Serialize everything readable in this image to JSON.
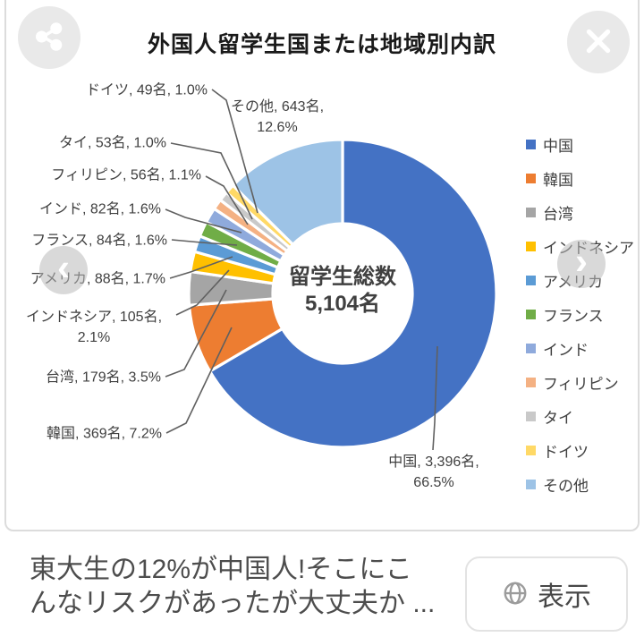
{
  "viewer": {
    "close_icon": "close-x",
    "share_icon": "share-nodes",
    "prev_icon": "chevron-left",
    "next_icon": "chevron-right",
    "prev_glyph": "‹",
    "next_glyph": "›"
  },
  "chart_data": {
    "type": "pie",
    "subtype": "doughnut",
    "title": "外国人留学生国または地域別内訳",
    "center_label": {
      "line1": "留学生総数",
      "line2": "5,104名"
    },
    "total": 5104,
    "unit": "名",
    "legend_position": "right",
    "start_angle_deg": 0,
    "direction": "clockwise",
    "series": [
      {
        "name": "中国",
        "count": 3396,
        "pct": 66.5,
        "color": "#4472C4",
        "label_lines": [
          "中国, 3,396名,",
          "66.5%"
        ]
      },
      {
        "name": "韓国",
        "count": 369,
        "pct": 7.2,
        "color": "#ED7D31",
        "label_lines": [
          "韓国, 369名, 7.2%"
        ]
      },
      {
        "name": "台湾",
        "count": 179,
        "pct": 3.5,
        "color": "#A5A5A5",
        "label_lines": [
          "台湾, 179名, 3.5%"
        ]
      },
      {
        "name": "インドネシア",
        "count": 105,
        "pct": 2.1,
        "color": "#FFC000",
        "label_lines": [
          "インドネシア, 105名,",
          "2.1%"
        ]
      },
      {
        "name": "アメリカ",
        "count": 88,
        "pct": 1.7,
        "color": "#5B9BD5",
        "label_lines": [
          "アメリカ, 88名, 1.7%"
        ]
      },
      {
        "name": "フランス",
        "count": 84,
        "pct": 1.6,
        "color": "#70AD47",
        "label_lines": [
          "フランス, 84名, 1.6%"
        ]
      },
      {
        "name": "インド",
        "count": 82,
        "pct": 1.6,
        "color": "#8FAADC",
        "label_lines": [
          "インド, 82名, 1.6%"
        ]
      },
      {
        "name": "フィリピン",
        "count": 56,
        "pct": 1.1,
        "color": "#F4B183",
        "label_lines": [
          "フィリピン, 56名, 1.1%"
        ]
      },
      {
        "name": "タイ",
        "count": 53,
        "pct": 1.0,
        "color": "#C9C9C9",
        "label_lines": [
          "タイ, 53名, 1.0%"
        ]
      },
      {
        "name": "ドイツ",
        "count": 49,
        "pct": 1.0,
        "color": "#FFD966",
        "label_lines": [
          "ドイツ, 49名, 1.0%"
        ]
      },
      {
        "name": "その他",
        "count": 643,
        "pct": 12.6,
        "color": "#9DC3E6",
        "label_lines": [
          "その他, 643名,",
          "12.6%"
        ]
      }
    ]
  },
  "footer": {
    "headline_line1": "東大生の12%が中国人!そこにこ",
    "headline_line2": "んなリスクがあったが大丈夫か ...",
    "view_button": "表示",
    "globe_icon": "globe"
  }
}
